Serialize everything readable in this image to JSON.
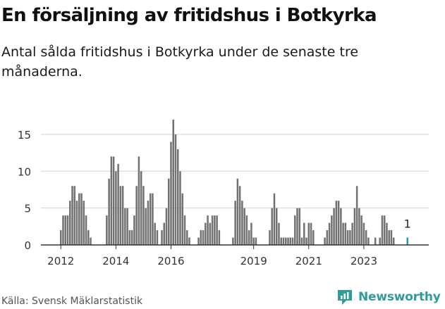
{
  "header": {
    "title": "En försäljning av fritidshus i Botkyrka",
    "subtitle": "Antal sålda fritidshus i Botkyrka under de senaste tre månaderna."
  },
  "footer": {
    "source": "Källa: Svensk Mäklarstatistik",
    "brand": "Newsworthy"
  },
  "colors": {
    "bar": "#717174",
    "highlight": "#2e9c9a",
    "grid": "#d2d2d2",
    "text": "#111111"
  },
  "chart_data": {
    "type": "bar",
    "x_start": "2012-01",
    "x_interval": "month",
    "ylim": [
      0,
      17
    ],
    "yticks": [
      0,
      5,
      10,
      15
    ],
    "xticks": [
      "2012",
      "2014",
      "2016",
      "2019",
      "2021",
      "2023"
    ],
    "grid": true,
    "annotation": "1",
    "values": [
      2,
      4,
      4,
      4,
      6,
      8,
      8,
      6,
      7,
      7,
      6,
      4,
      2,
      1,
      0,
      0,
      0,
      0,
      0,
      0,
      4,
      9,
      12,
      12,
      10,
      11,
      8,
      8,
      5,
      5,
      2,
      2,
      4,
      8,
      12,
      10,
      8,
      5,
      6,
      7,
      7,
      3,
      2,
      0,
      2,
      3,
      5,
      9,
      14,
      17,
      15,
      13,
      10,
      7,
      4,
      2,
      1,
      0,
      0,
      0,
      1,
      2,
      2,
      3,
      4,
      3,
      4,
      4,
      4,
      2,
      0,
      0,
      0,
      0,
      0,
      1,
      6,
      9,
      8,
      6,
      5,
      4,
      2,
      3,
      1,
      1,
      0,
      0,
      0,
      0,
      0,
      2,
      5,
      7,
      5,
      3,
      1,
      1,
      1,
      1,
      1,
      1,
      4,
      5,
      5,
      1,
      3,
      1,
      3,
      3,
      2,
      0,
      0,
      0,
      0,
      1,
      2,
      3,
      4,
      5,
      6,
      6,
      5,
      3,
      3,
      2,
      2,
      3,
      5,
      8,
      5,
      4,
      3,
      2,
      1,
      0,
      0,
      1,
      0,
      1,
      4,
      4,
      3,
      2,
      2,
      1,
      0,
      0,
      0,
      0,
      0,
      1
    ],
    "highlight_last": true
  }
}
